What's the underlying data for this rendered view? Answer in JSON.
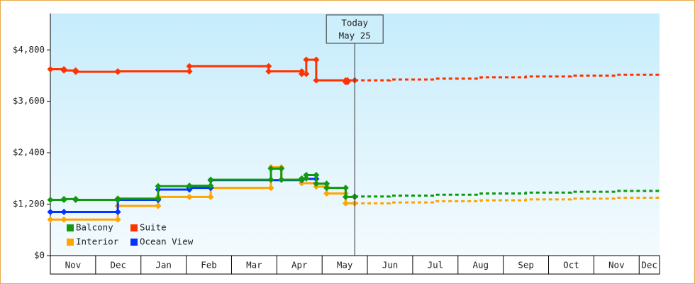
{
  "chart_data": {
    "type": "step",
    "xlim": [
      0,
      13.45
    ],
    "ylim": [
      0,
      5650
    ],
    "xticks": [
      {
        "value": 0,
        "label": "Nov"
      },
      {
        "value": 1,
        "label": "Dec"
      },
      {
        "value": 2,
        "label": "Jan"
      },
      {
        "value": 3,
        "label": "Feb"
      },
      {
        "value": 4,
        "label": "Mar"
      },
      {
        "value": 5,
        "label": "Apr"
      },
      {
        "value": 6,
        "label": "May"
      },
      {
        "value": 7,
        "label": "Jun"
      },
      {
        "value": 8,
        "label": "Jul"
      },
      {
        "value": 9,
        "label": "Aug"
      },
      {
        "value": 10,
        "label": "Sep"
      },
      {
        "value": 11,
        "label": "Oct"
      },
      {
        "value": 12,
        "label": "Nov"
      },
      {
        "value": 13,
        "label": "Dec"
      }
    ],
    "yticks": [
      {
        "value": 0,
        "label": "$0"
      },
      {
        "value": 1200,
        "label": "$1,200"
      },
      {
        "value": 2400,
        "label": "$2,400"
      },
      {
        "value": 3600,
        "label": "$3,600"
      },
      {
        "value": 4800,
        "label": "$4,800"
      }
    ],
    "annotation": {
      "x": 6.72,
      "lines": [
        "Today",
        "May 25"
      ]
    },
    "series": [
      {
        "name": "Suite",
        "color": "#ff3300",
        "x": [
          0,
          0.3,
          0.56,
          1.49,
          3.07,
          4.82,
          5.55,
          5.65,
          5.87,
          6.52,
          6.56,
          6.72
        ],
        "values": [
          4350,
          4320,
          4290,
          4300,
          4420,
          4300,
          4240,
          4570,
          4090,
          4050,
          4090,
          4090
        ],
        "forecast_x": [
          6.72,
          7.5,
          8.5,
          9.5,
          10.5,
          11.5,
          12.5,
          13.45
        ],
        "forecast": [
          4090,
          4110,
          4130,
          4160,
          4180,
          4200,
          4220,
          4230
        ]
      },
      {
        "name": "Interior",
        "color": "#ffa500",
        "x": [
          0,
          0.3,
          1.49,
          2.38,
          3.07,
          3.54,
          4.87,
          5.1,
          5.55,
          5.87,
          6.1,
          6.52,
          6.72
        ],
        "values": [
          840,
          840,
          1160,
          1370,
          1370,
          1580,
          2060,
          1770,
          1690,
          1610,
          1450,
          1220,
          1220
        ],
        "forecast_x": [
          6.72,
          7.5,
          8.5,
          9.5,
          10.5,
          11.5,
          12.5,
          13.45
        ],
        "forecast": [
          1220,
          1240,
          1270,
          1290,
          1310,
          1330,
          1350,
          1370
        ]
      },
      {
        "name": "Ocean View",
        "color": "#0033ff",
        "x": [
          0,
          0.3,
          1.49,
          2.38,
          3.07,
          3.54,
          5.55,
          5.87
        ],
        "values": [
          1020,
          1020,
          1300,
          1540,
          1580,
          1760,
          1790,
          1790
        ]
      },
      {
        "name": "Balcony",
        "color": "#119911",
        "x": [
          0,
          0.3,
          0.56,
          1.49,
          2.38,
          3.07,
          3.54,
          4.87,
          5.1,
          5.55,
          5.65,
          5.87,
          6.1,
          6.52,
          6.72
        ],
        "values": [
          1300,
          1320,
          1300,
          1330,
          1620,
          1630,
          1770,
          2030,
          1770,
          1800,
          1880,
          1680,
          1580,
          1370,
          1380
        ],
        "forecast_x": [
          6.72,
          7.5,
          8.5,
          9.5,
          10.5,
          11.5,
          12.5,
          13.45
        ],
        "forecast": [
          1380,
          1400,
          1420,
          1450,
          1470,
          1490,
          1510,
          1530
        ]
      }
    ],
    "legend_order": [
      3,
      0,
      1,
      2
    ]
  }
}
